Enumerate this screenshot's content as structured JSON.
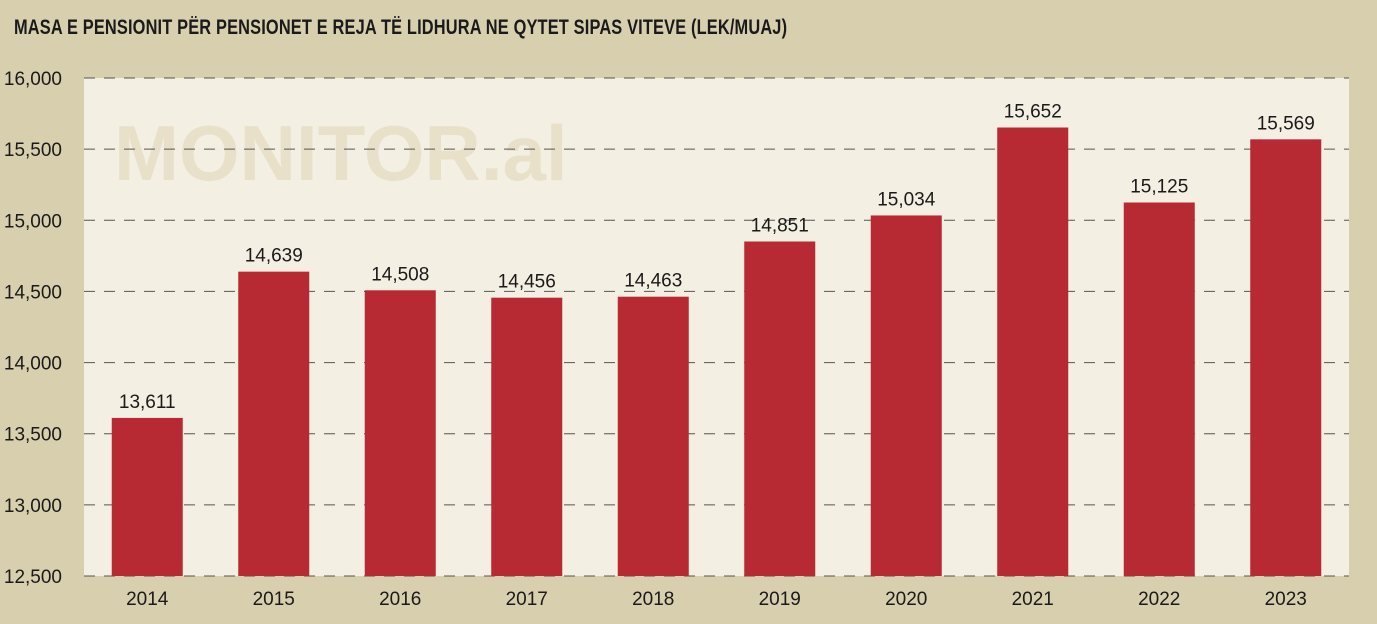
{
  "title": "MASA E PENSIONIT PËR PENSIONET E REJA TË LIDHURA NE QYTET  SIPAS VITEVE (LEK/MUAJ)",
  "watermark": "MONITOR.al",
  "colors": {
    "background": "#d8cfae",
    "plot_background": "#f3efe2",
    "bar": "#b82a33",
    "grid": "#555555"
  },
  "chart_data": {
    "type": "bar",
    "title": "MASA E PENSIONIT PËR PENSIONET E REJA TË LIDHURA NE QYTET  SIPAS VITEVE (LEK/MUAJ)",
    "categories": [
      "2014",
      "2015",
      "2016",
      "2017",
      "2018",
      "2019",
      "2020",
      "2021",
      "2022",
      "2023"
    ],
    "values": [
      13611,
      14639,
      14508,
      14456,
      14463,
      14851,
      15034,
      15652,
      15125,
      15569
    ],
    "value_labels": [
      "13,611",
      "14,639",
      "14,508",
      "14,456",
      "14,463",
      "14,851",
      "15,034",
      "15,652",
      "15,125",
      "15,569"
    ],
    "ylim": [
      12500,
      16000
    ],
    "yticks": [
      12500,
      13000,
      13500,
      14000,
      14500,
      15000,
      15500,
      16000
    ],
    "ytick_labels": [
      "12,500",
      "13,000",
      "13,500",
      "14,000",
      "14,500",
      "15,000",
      "15,500",
      "16,000"
    ],
    "grid": true,
    "legend": "none"
  }
}
